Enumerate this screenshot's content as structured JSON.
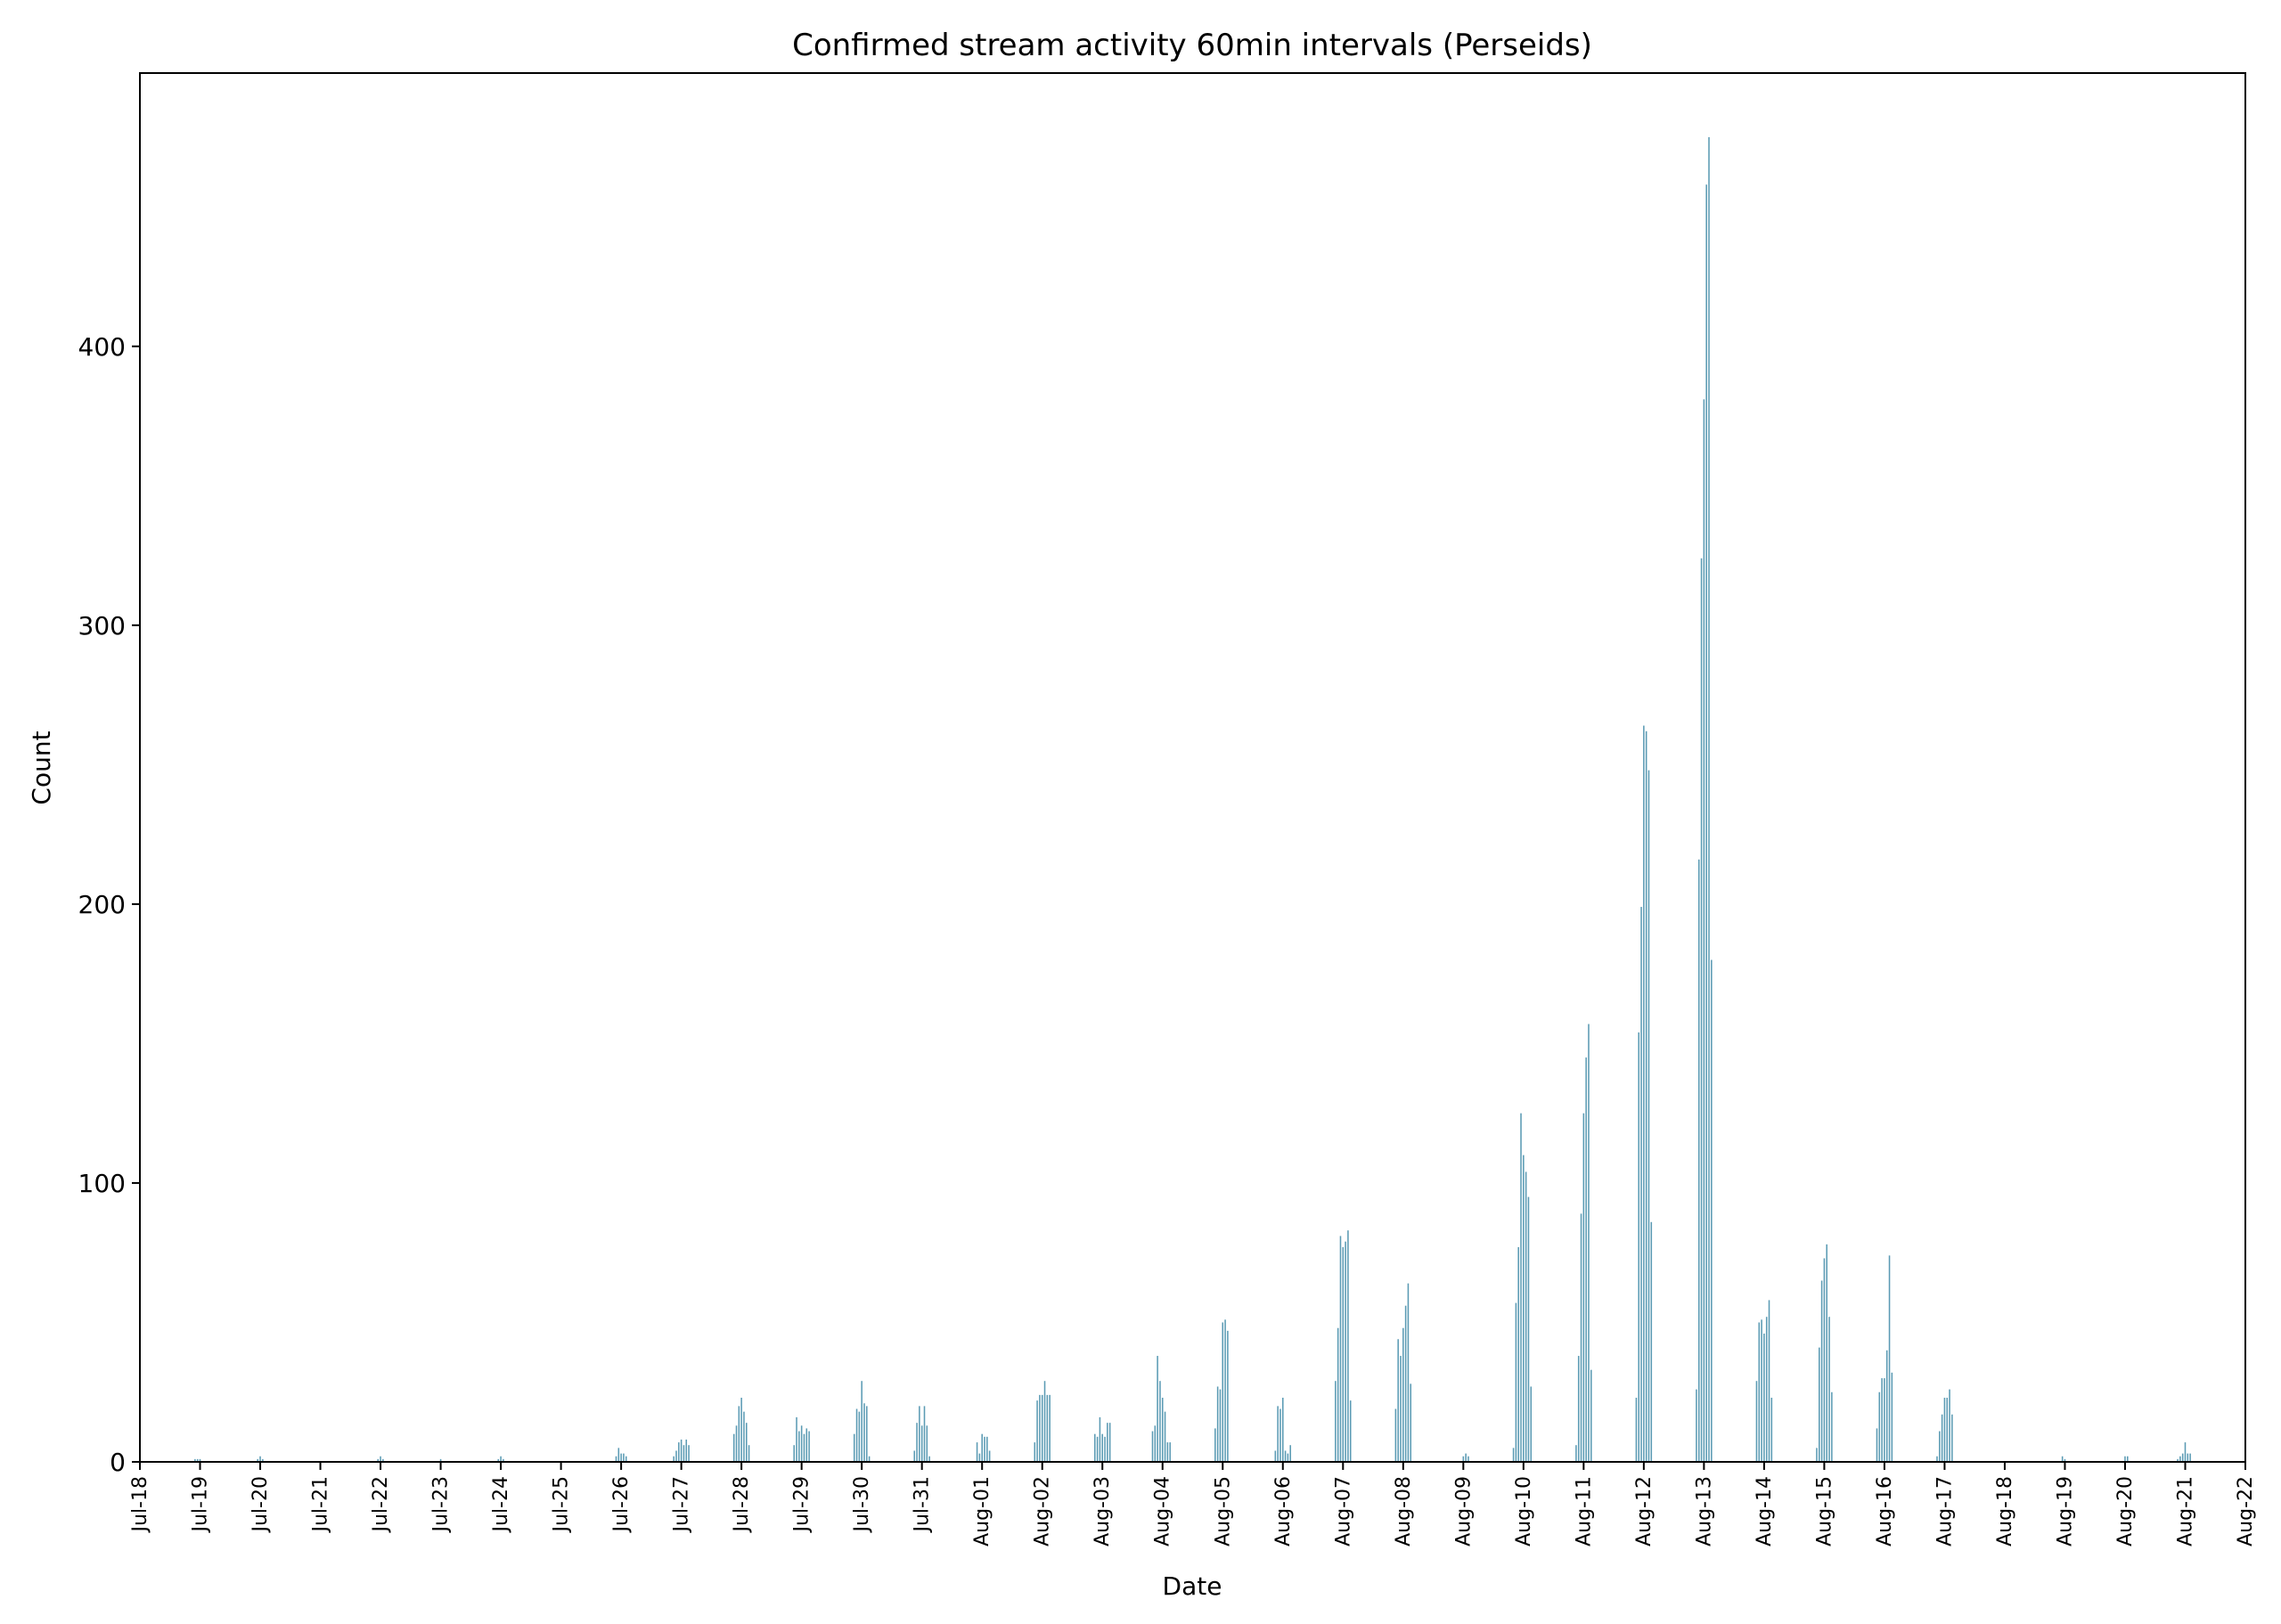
{
  "colors": {
    "bar": "#5b9bb4",
    "axis": "#000000",
    "background": "#ffffff"
  },
  "chart_data": {
    "type": "bar",
    "title": "Confirmed stream activity 60min intervals (Perseids)",
    "xlabel": "Date",
    "ylabel": "Count",
    "x_is_date": true,
    "xlim": [
      "Jul-18",
      "Aug-22"
    ],
    "ylim": [
      0,
      498
    ],
    "grid": false,
    "legend": "none",
    "x_ticks": [
      "Jul-18",
      "Jul-19",
      "Jul-20",
      "Jul-21",
      "Jul-22",
      "Jul-23",
      "Jul-24",
      "Jul-25",
      "Jul-26",
      "Jul-27",
      "Jul-28",
      "Jul-29",
      "Jul-30",
      "Jul-31",
      "Aug-01",
      "Aug-02",
      "Aug-03",
      "Aug-04",
      "Aug-05",
      "Aug-06",
      "Aug-07",
      "Aug-08",
      "Aug-09",
      "Aug-10",
      "Aug-11",
      "Aug-12",
      "Aug-13",
      "Aug-14",
      "Aug-15",
      "Aug-16",
      "Aug-17",
      "Aug-18",
      "Aug-19",
      "Aug-20",
      "Aug-21",
      "Aug-22"
    ],
    "y_ticks": [
      0,
      100,
      200,
      300,
      400
    ],
    "days": [
      {
        "date": "Jul-19",
        "hours": [
          22,
          23,
          0
        ],
        "values": [
          1,
          1,
          1
        ]
      },
      {
        "date": "Jul-20",
        "hours": [
          23,
          0,
          1
        ],
        "values": [
          1,
          2,
          1
        ]
      },
      {
        "date": "Jul-22",
        "hours": [
          23,
          0,
          1
        ],
        "values": [
          1,
          2,
          1
        ]
      },
      {
        "date": "Jul-23",
        "hours": [
          0
        ],
        "values": [
          1
        ]
      },
      {
        "date": "Jul-24",
        "hours": [
          23,
          0,
          1
        ],
        "values": [
          1,
          2,
          1
        ]
      },
      {
        "date": "Jul-26",
        "hours": [
          22,
          23,
          0,
          1,
          2
        ],
        "values": [
          2,
          5,
          3,
          3,
          2
        ]
      },
      {
        "date": "Jul-27",
        "hours": [
          21,
          22,
          23,
          0,
          1,
          2,
          3
        ],
        "values": [
          2,
          4,
          7,
          8,
          6,
          8,
          6
        ]
      },
      {
        "date": "Jul-28",
        "hours": [
          21,
          22,
          23,
          0,
          1,
          2,
          3
        ],
        "values": [
          10,
          13,
          20,
          23,
          18,
          14,
          6
        ]
      },
      {
        "date": "Jul-29",
        "hours": [
          21,
          22,
          23,
          0,
          1,
          2,
          3
        ],
        "values": [
          6,
          16,
          11,
          13,
          10,
          12,
          11
        ]
      },
      {
        "date": "Jul-30",
        "hours": [
          21,
          22,
          23,
          0,
          1,
          2,
          3
        ],
        "values": [
          10,
          19,
          18,
          29,
          21,
          20,
          2
        ]
      },
      {
        "date": "Jul-31",
        "hours": [
          21,
          22,
          23,
          0,
          1,
          2,
          3
        ],
        "values": [
          4,
          14,
          20,
          13,
          20,
          13,
          2
        ]
      },
      {
        "date": "Aug-01",
        "hours": [
          22,
          23,
          0,
          1,
          2,
          3
        ],
        "values": [
          7,
          3,
          10,
          9,
          9,
          4
        ]
      },
      {
        "date": "Aug-02",
        "hours": [
          21,
          22,
          23,
          0,
          1,
          2,
          3
        ],
        "values": [
          7,
          22,
          24,
          24,
          29,
          24,
          24
        ]
      },
      {
        "date": "Aug-03",
        "hours": [
          21,
          22,
          23,
          0,
          1,
          2,
          3
        ],
        "values": [
          10,
          9,
          16,
          10,
          9,
          14,
          14
        ]
      },
      {
        "date": "Aug-04",
        "hours": [
          20,
          21,
          22,
          23,
          0,
          1,
          2,
          3
        ],
        "values": [
          11,
          13,
          38,
          29,
          23,
          18,
          7,
          7
        ]
      },
      {
        "date": "Aug-05",
        "hours": [
          21,
          22,
          23,
          0,
          1,
          2
        ],
        "values": [
          12,
          27,
          26,
          50,
          51,
          47
        ]
      },
      {
        "date": "Aug-06",
        "hours": [
          21,
          22,
          23,
          0,
          1,
          2,
          3
        ],
        "values": [
          4,
          20,
          19,
          23,
          4,
          3,
          6
        ]
      },
      {
        "date": "Aug-07",
        "hours": [
          21,
          22,
          23,
          0,
          1,
          2,
          3
        ],
        "values": [
          29,
          48,
          81,
          77,
          79,
          83,
          22
        ]
      },
      {
        "date": "Aug-08",
        "hours": [
          21,
          22,
          23,
          0,
          1,
          2,
          3
        ],
        "values": [
          19,
          44,
          38,
          48,
          56,
          64,
          28
        ]
      },
      {
        "date": "Aug-09",
        "hours": [
          0,
          1,
          2
        ],
        "values": [
          2,
          3,
          2
        ]
      },
      {
        "date": "Aug-10",
        "hours": [
          20,
          21,
          22,
          23,
          0,
          1,
          2,
          3
        ],
        "values": [
          5,
          57,
          77,
          125,
          110,
          104,
          95,
          27
        ]
      },
      {
        "date": "Aug-11",
        "hours": [
          21,
          22,
          23,
          0,
          1,
          2,
          3
        ],
        "values": [
          6,
          38,
          89,
          125,
          145,
          157,
          33
        ]
      },
      {
        "date": "Aug-12",
        "hours": [
          21,
          22,
          23,
          0,
          1,
          2,
          3
        ],
        "values": [
          23,
          154,
          199,
          264,
          262,
          248,
          86
        ]
      },
      {
        "date": "Aug-13",
        "hours": [
          21,
          22,
          23,
          0,
          1,
          2,
          3
        ],
        "values": [
          26,
          216,
          324,
          381,
          458,
          475,
          180
        ]
      },
      {
        "date": "Aug-14",
        "hours": [
          21,
          22,
          23,
          0,
          1,
          2,
          3
        ],
        "values": [
          29,
          50,
          51,
          46,
          52,
          58,
          23
        ]
      },
      {
        "date": "Aug-15",
        "hours": [
          21,
          22,
          23,
          0,
          1,
          2,
          3
        ],
        "values": [
          5,
          41,
          65,
          73,
          78,
          52,
          25
        ]
      },
      {
        "date": "Aug-16",
        "hours": [
          21,
          22,
          23,
          0,
          1,
          2,
          3
        ],
        "values": [
          12,
          25,
          30,
          30,
          40,
          74,
          32
        ]
      },
      {
        "date": "Aug-17",
        "hours": [
          21,
          22,
          23,
          0,
          1,
          2,
          3
        ],
        "values": [
          2,
          11,
          17,
          23,
          23,
          26,
          17
        ]
      },
      {
        "date": "Aug-19",
        "hours": [
          23,
          0
        ],
        "values": [
          2,
          1
        ]
      },
      {
        "date": "Aug-20",
        "hours": [
          0,
          1
        ],
        "values": [
          2,
          2
        ]
      },
      {
        "date": "Aug-21",
        "hours": [
          21,
          22,
          23,
          0,
          1,
          2
        ],
        "values": [
          1,
          2,
          3,
          7,
          3,
          3
        ]
      }
    ]
  }
}
